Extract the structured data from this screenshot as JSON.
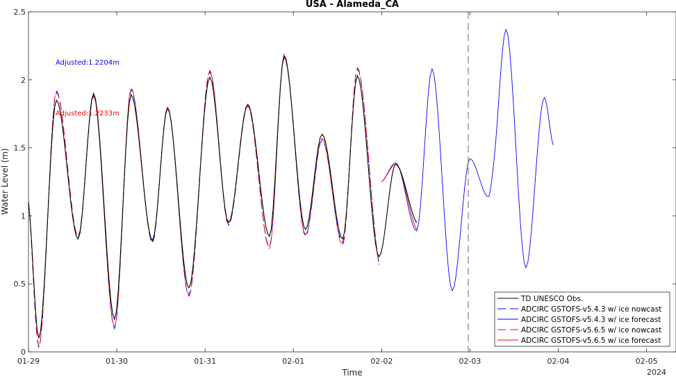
{
  "chart_data": {
    "type": "line",
    "title": "USA - Alameda_CA",
    "xlabel": "Time",
    "ylabel": "Water Level (m)",
    "xlim": [
      "01-29 00:00",
      "02-05 08:00"
    ],
    "ylim": [
      0,
      2.5
    ],
    "y_ticks": [
      "0",
      "0.5",
      "1",
      "1.5",
      "2",
      "2.5"
    ],
    "x_ticks": [
      "01-29",
      "01-30",
      "01-31",
      "02-01",
      "02-02",
      "02-03",
      "02-04",
      "02-05"
    ],
    "x_secondary_label": "2024",
    "grid": false,
    "legend_position": "bottom-right",
    "nowcast_forecast_divider": "02-03 00:00",
    "annotations": [
      {
        "text": "Adjusted:1.2204m",
        "color": "#0000ff"
      },
      {
        "text": "Adjusted:1.2233m",
        "color": "#ff0000"
      }
    ],
    "x_unit": "hours since 01-29 00:00",
    "series": [
      {
        "name": "TD UNESCO Obs.",
        "color": "#000000",
        "dash": "solid",
        "x": [
          0,
          2.8,
          7.6,
          13.5,
          17.7,
          23.4,
          27.9,
          33.7,
          37.8,
          43.6,
          49.3,
          54.4,
          59.6,
          65.5,
          69.5,
          75.3,
          79.8,
          85.4,
          89.4,
          95.3,
          99.8,
          105.5,
          109.7,
          115.2,
          120,
          125,
          126.5,
          129.8,
          135.2,
          140.2
        ],
        "y": [
          1.1,
          0.1,
          1.85,
          0.83,
          1.9,
          0.24,
          1.89,
          0.82,
          1.79,
          0.47,
          2.02,
          0.95,
          1.82,
          0.85,
          2.17,
          0.9,
          1.6,
          0.83,
          2.03,
          0.7,
          1.38,
          0.95,
          2.08,
          0.46,
          1.42,
          1.14,
          1.4,
          2.37,
          0.62,
          1.87
        ]
      },
      {
        "name": "ADCIRC GSTOFS-v5.4.3 w/ ice nowcast",
        "color": "#0000ff",
        "dash": "long",
        "x": [
          0,
          2.8,
          7.6,
          13.5,
          17.7,
          23.4,
          27.9,
          33.7,
          37.8,
          43.6,
          49.3,
          54.4,
          59.6,
          65.5,
          69.5,
          75.3,
          79.8,
          85.4,
          89.4,
          95.3,
          99.8,
          105.5,
          109.7,
          115.2,
          120,
          125,
          126.5,
          129.8,
          135.2,
          140.2
        ],
        "y": [
          1.1,
          0.03,
          1.91,
          0.84,
          1.89,
          0.17,
          1.93,
          0.8,
          1.8,
          0.41,
          2.06,
          0.93,
          1.81,
          0.77,
          2.18,
          0.85,
          1.56,
          0.8,
          2.08,
          0.65,
          1.38,
          0.9,
          2.08,
          0.45,
          1.42,
          1.14,
          1.4,
          2.37,
          0.62,
          1.87
        ]
      },
      {
        "name": "ADCIRC GSTOFS-v5.4.3 w/ ice forecast",
        "color": "#0000ff",
        "dash": "solid",
        "x": [
          96,
          99.8,
          105.5,
          109.7,
          115.2,
          120,
          125,
          126.5,
          129.8,
          135.2,
          140.2,
          142.6
        ],
        "y": [
          1.25,
          1.39,
          0.89,
          2.08,
          0.45,
          1.42,
          1.14,
          1.4,
          2.37,
          0.62,
          1.87,
          1.52
        ]
      },
      {
        "name": "ADCIRC GSTOFS-v5.6.5 w/ ice nowcast",
        "color": "#ff0000",
        "dash": "long",
        "x": [
          0,
          2.8,
          7.6,
          13.5,
          17.7,
          23.4,
          27.9,
          33.7,
          37.8,
          43.6,
          49.3,
          54.4,
          59.6,
          65.5,
          69.5,
          75.3,
          79.8,
          85.4,
          89.4,
          95.3,
          99.8,
          105.5,
          109.7,
          115.2,
          120,
          125,
          126.5,
          129.8,
          135.2,
          140.2
        ],
        "y": [
          1.1,
          0.04,
          1.92,
          0.85,
          1.88,
          0.18,
          1.94,
          0.81,
          1.8,
          0.42,
          2.07,
          0.94,
          1.81,
          0.76,
          2.19,
          0.86,
          1.57,
          0.78,
          2.09,
          0.64,
          1.38,
          0.9,
          2.08,
          0.46,
          1.42,
          1.14,
          1.4,
          2.37,
          0.62,
          1.87
        ]
      },
      {
        "name": "ADCIRC GSTOFS-v5.6.5 w/ ice forecast",
        "color": "#ff0000",
        "dash": "solid",
        "x": [
          96,
          99.8,
          105.5,
          109.7,
          115.2
        ],
        "y": [
          1.25,
          1.38,
          0.9,
          2.09,
          0.46
        ]
      }
    ]
  }
}
